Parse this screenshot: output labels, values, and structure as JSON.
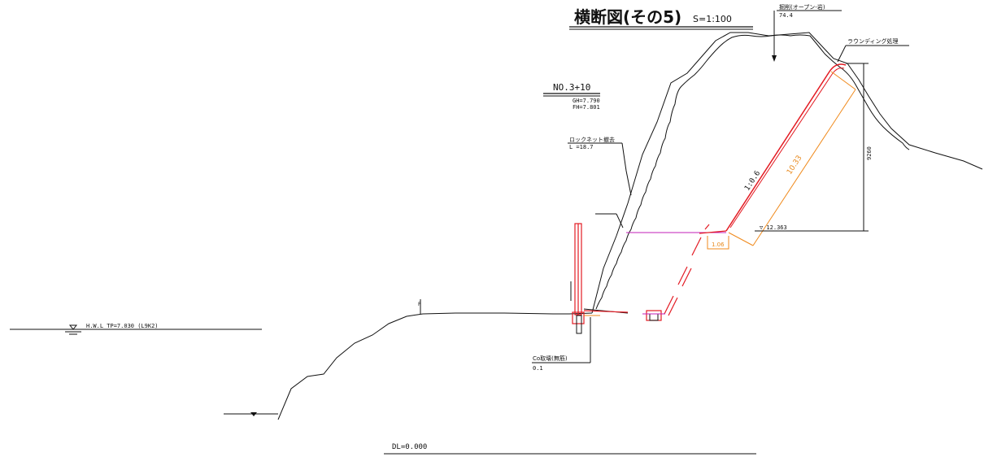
{
  "title": {
    "main": "横断図(その5)",
    "scale": "S=1:100"
  },
  "station": {
    "number": "NO.3+10",
    "gh": "GH=7.790",
    "fh": "FH=7.801"
  },
  "callouts": {
    "excavation_label": "掘削(オープン-岩)",
    "excavation_value": "74.4",
    "rounding_label": "ラウンディング処理",
    "rocknet_label": "ロックネット撤去",
    "rocknet_value": "L =18.7",
    "concrete_label": "Co取壊(無筋)",
    "concrete_value": "0.1"
  },
  "dimensions": {
    "slope_ratio": "1:0.6",
    "slope_length": "10.33",
    "height": "9260",
    "elevation": "▽ 12.363",
    "berm_width": "1.06"
  },
  "water": {
    "hwl": "H.W.L TP=7.030 (L9K2)"
  },
  "datum": {
    "dl": "DL=0.000"
  },
  "colors": {
    "new_slope": "#e31b23",
    "dimension": "#f08a1c",
    "berm_line": "#c21fb8",
    "existing_ground": "#111111"
  }
}
